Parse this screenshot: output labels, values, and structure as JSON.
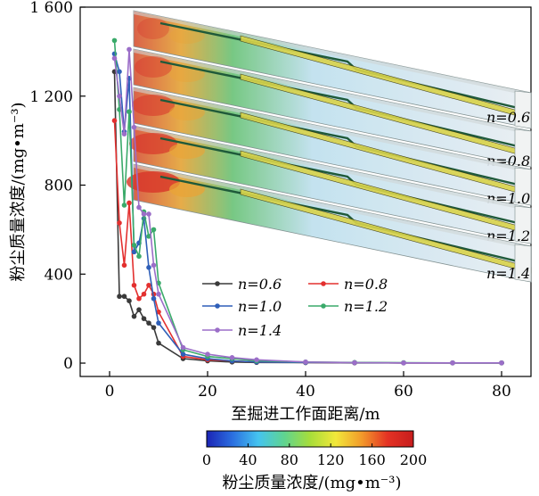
{
  "chart_data": {
    "type": "line",
    "xlabel": "至掘进工作面距离/m",
    "ylabel": "粉尘质量浓度/(mg•m⁻³)",
    "xlim": [
      -6,
      86
    ],
    "ylim": [
      -60,
      1600
    ],
    "xticks": [
      "0",
      "20",
      "40",
      "60",
      "80"
    ],
    "yticks": [
      "0",
      "400",
      "800",
      "1 200",
      "1 600"
    ],
    "xtick_values": [
      0,
      20,
      40,
      60,
      80
    ],
    "ytick_values": [
      0,
      400,
      800,
      1200,
      1600
    ],
    "legend_placement": "center",
    "series": [
      {
        "name": "n=0.6",
        "color": "#3a3a3a",
        "x": [
          1,
          2,
          3,
          4,
          5,
          6,
          7,
          8,
          9,
          10,
          15,
          20,
          25,
          30,
          40,
          50,
          60,
          70,
          80
        ],
        "y": [
          1310,
          300,
          300,
          280,
          210,
          240,
          200,
          180,
          160,
          90,
          20,
          10,
          5,
          3,
          2,
          1,
          1,
          1,
          1
        ]
      },
      {
        "name": "n=0.8",
        "color": "#e3302f",
        "x": [
          1,
          2,
          3,
          4,
          5,
          6,
          7,
          8,
          9,
          10,
          15,
          20,
          25,
          30,
          40,
          50,
          60,
          70,
          80
        ],
        "y": [
          1090,
          630,
          440,
          720,
          350,
          290,
          310,
          350,
          310,
          230,
          30,
          15,
          10,
          5,
          3,
          2,
          1,
          1,
          1
        ]
      },
      {
        "name": "n=1.0",
        "color": "#2f5fb8",
        "x": [
          1,
          2,
          3,
          4,
          5,
          6,
          7,
          8,
          9,
          10,
          15,
          20,
          25,
          30,
          40,
          50,
          60,
          70,
          80
        ],
        "y": [
          1390,
          1310,
          1040,
          1280,
          500,
          540,
          650,
          430,
          290,
          180,
          40,
          20,
          10,
          5,
          3,
          2,
          1,
          1,
          1
        ]
      },
      {
        "name": "n=1.2",
        "color": "#3aaa6a",
        "x": [
          1,
          2,
          3,
          4,
          5,
          6,
          7,
          8,
          9,
          10,
          15,
          20,
          25,
          30,
          40,
          50,
          60,
          70,
          80
        ],
        "y": [
          1450,
          1140,
          710,
          1130,
          530,
          480,
          680,
          570,
          600,
          360,
          60,
          30,
          20,
          10,
          5,
          3,
          2,
          1,
          1
        ]
      },
      {
        "name": "n=1.4",
        "color": "#9b6ec8",
        "x": [
          1,
          2,
          3,
          4,
          5,
          6,
          7,
          8,
          9,
          10,
          15,
          20,
          25,
          30,
          40,
          50,
          60,
          70,
          80
        ],
        "y": [
          1370,
          1200,
          1030,
          1410,
          1060,
          700,
          670,
          670,
          440,
          310,
          70,
          40,
          25,
          15,
          5,
          2,
          1,
          1,
          1
        ]
      }
    ],
    "inset": {
      "description_labels": [
        "n=0.6",
        "n=0.8",
        "n=1.0",
        "n=1.2",
        "n=1.4"
      ]
    },
    "colorbar": {
      "label": "粉尘质量浓度/(mg•m⁻³)",
      "ticks": [
        "0",
        "40",
        "80",
        "120",
        "160",
        "200"
      ],
      "colors": [
        "#1b24b5",
        "#2b6fe0",
        "#45c4f0",
        "#5fd490",
        "#a7dd3a",
        "#f2e83a",
        "#f29a2a",
        "#e43224",
        "#c71d1d"
      ]
    }
  }
}
